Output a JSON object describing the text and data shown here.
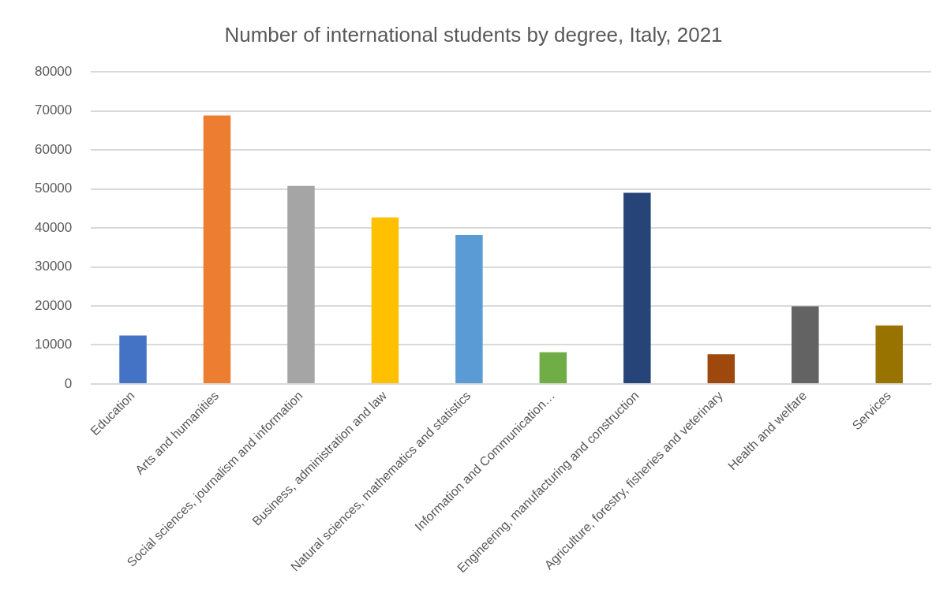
{
  "chart_data": {
    "type": "bar",
    "title": "Number of international students by degree, Italy, 2021",
    "categories": [
      "Education",
      "Arts and humanities",
      "Social sciences, journalism and information",
      "Business, administration and law",
      "Natural sciences, mathematics and statistics",
      "Information and Communication…",
      "Engineering, manufacturing and construction",
      "Agriculture, forestry, fisheries and veterinary",
      "Health and welfare",
      "Services"
    ],
    "values": [
      12400,
      68800,
      50800,
      42700,
      38200,
      8100,
      49000,
      7600,
      19900,
      15000
    ],
    "colors": [
      "#4472c4",
      "#ed7d31",
      "#a5a5a5",
      "#ffc000",
      "#5b9bd5",
      "#70ad47",
      "#264478",
      "#9e480e",
      "#636363",
      "#997300"
    ],
    "ylim": [
      0,
      80000
    ],
    "yticks": [
      0,
      10000,
      20000,
      30000,
      40000,
      50000,
      60000,
      70000,
      80000
    ],
    "grid": "y",
    "legend": false
  }
}
